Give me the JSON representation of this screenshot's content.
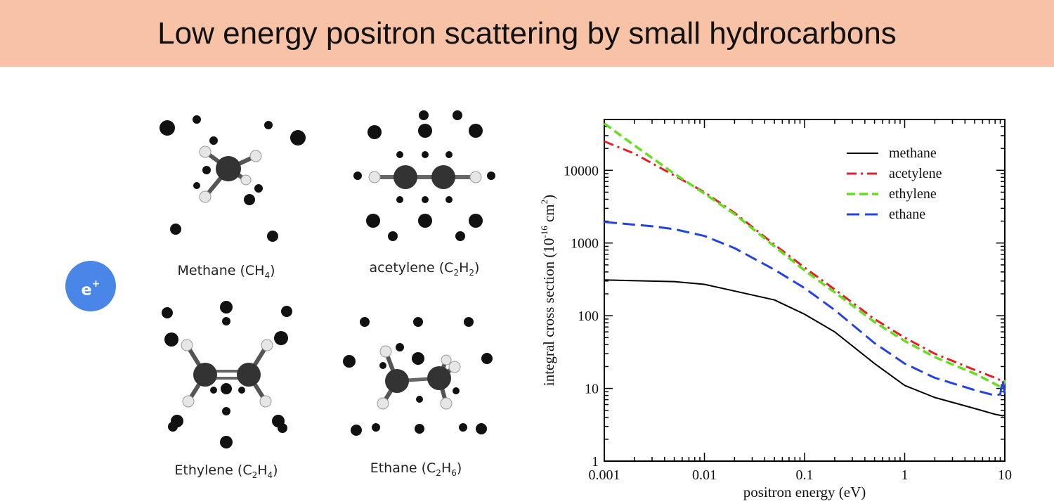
{
  "header": {
    "title": "Low energy positron scattering by small hydrocarbons"
  },
  "positron": {
    "label": "e",
    "charge": "+"
  },
  "molecules": [
    {
      "name": "Methane",
      "formula": [
        {
          "t": "CH"
        },
        {
          "s": "4"
        }
      ]
    },
    {
      "name": "acetylene",
      "formula": [
        {
          "t": "C"
        },
        {
          "s": "2"
        },
        {
          "t": "H"
        },
        {
          "s": "2"
        }
      ]
    },
    {
      "name": "Ethylene",
      "formula": [
        {
          "t": "C"
        },
        {
          "s": "2"
        },
        {
          "t": "H"
        },
        {
          "s": "4"
        }
      ]
    },
    {
      "name": "Ethane",
      "formula": [
        {
          "t": "C"
        },
        {
          "s": "2"
        },
        {
          "t": "H"
        },
        {
          "s": "6"
        }
      ]
    }
  ],
  "colors": {
    "banner": "#f8c2a6",
    "positron": "#4a86e8",
    "carbon": "#333333",
    "hydrogen": "#e6e6e6"
  },
  "chart_data": {
    "type": "line",
    "xlabel": "positron energy (eV)",
    "ylabel_main": "integral cross section (10",
    "ylabel_exp1": "-16",
    "ylabel_unit": " cm",
    "ylabel_exp2": "2",
    "ylabel_close": ")",
    "xscale": "log",
    "yscale": "log",
    "xlim": [
      0.001,
      10
    ],
    "ylim": [
      1,
      50000
    ],
    "xticks": [
      {
        "v": 0.001,
        "label": "0.001"
      },
      {
        "v": 0.01,
        "label": "0.01"
      },
      {
        "v": 0.1,
        "label": "0.1"
      },
      {
        "v": 1,
        "label": "1"
      },
      {
        "v": 10,
        "label": "10"
      }
    ],
    "yticks": [
      {
        "v": 1,
        "label": "1"
      },
      {
        "v": 10,
        "label": "10"
      },
      {
        "v": 100,
        "label": "100"
      },
      {
        "v": 1000,
        "label": "1000"
      },
      {
        "v": 10000,
        "label": "10000"
      }
    ],
    "legend": "top-right",
    "grid": false,
    "series": [
      {
        "name": "methane",
        "color": "#000000",
        "dash": "solid",
        "x": [
          0.001,
          0.005,
          0.01,
          0.05,
          0.1,
          0.2,
          0.5,
          1,
          2,
          5,
          8,
          9.5,
          10
        ],
        "y": [
          310,
          295,
          270,
          165,
          105,
          60,
          22,
          11,
          7.5,
          5.3,
          4.4,
          4.2,
          4.3
        ]
      },
      {
        "name": "acetylene",
        "color": "#e0202a",
        "dash": "dashdot",
        "x": [
          0.001,
          0.002,
          0.005,
          0.01,
          0.02,
          0.05,
          0.1,
          0.2,
          0.5,
          1,
          2,
          5,
          8,
          9,
          9.5,
          10
        ],
        "y": [
          25000,
          17000,
          8500,
          5000,
          2600,
          950,
          460,
          230,
          90,
          50,
          30,
          18,
          14,
          13,
          11,
          13
        ]
      },
      {
        "name": "ethylene",
        "color": "#66dd22",
        "dash": "dashed",
        "x": [
          0.001,
          0.002,
          0.005,
          0.01,
          0.02,
          0.05,
          0.1,
          0.2,
          0.5,
          1,
          2,
          5,
          8,
          9,
          9.5,
          10
        ],
        "y": [
          44000,
          22000,
          9000,
          4800,
          2500,
          900,
          420,
          210,
          82,
          45,
          27,
          16,
          11.5,
          10.5,
          10,
          13
        ]
      },
      {
        "name": "ethane",
        "color": "#2244dd",
        "dash": "longdash",
        "x": [
          0.001,
          0.003,
          0.005,
          0.01,
          0.02,
          0.05,
          0.1,
          0.2,
          0.5,
          1,
          2,
          5,
          8,
          9,
          9.5,
          10
        ],
        "y": [
          1950,
          1700,
          1550,
          1250,
          850,
          430,
          240,
          120,
          42,
          22,
          14,
          9.5,
          8,
          8.3,
          13,
          8.5
        ]
      }
    ]
  }
}
